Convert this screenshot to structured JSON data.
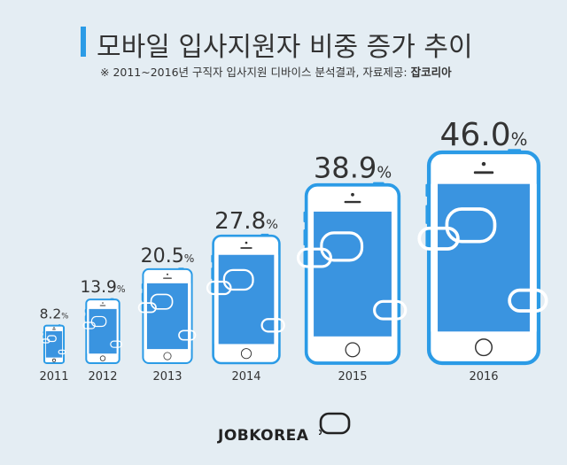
{
  "header": {
    "title": "모바일 입사지원자 비중 증가 추이",
    "note": "※ 2011~2016년  구직자 입사지원 디바이스 분석결과, 자료제공: ",
    "source": "잡코리아"
  },
  "colors": {
    "accent": "#2b9be6",
    "phone_frame": "#2b9be6",
    "screen": "#3a94e0",
    "background": "#e4edf3"
  },
  "logo": {
    "text": "JOBKOREA",
    "icon": "speech-bubble-logo-icon"
  },
  "chart_data": {
    "type": "bar",
    "categories": [
      "2011",
      "2012",
      "2013",
      "2014",
      "2015",
      "2016"
    ],
    "values": [
      8.2,
      13.9,
      20.5,
      27.8,
      38.9,
      46.0
    ],
    "value_labels": [
      "8.2",
      "13.9",
      "20.5",
      "27.8",
      "38.9",
      "46.0"
    ],
    "unit": "%",
    "mark": "smartphone-icon",
    "grid": false,
    "legend": "none"
  }
}
